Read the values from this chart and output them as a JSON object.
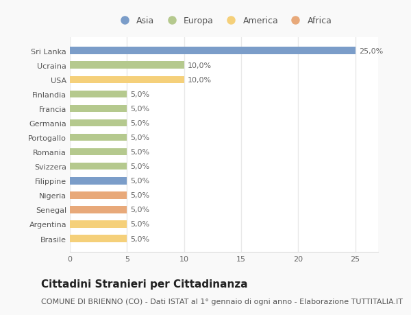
{
  "countries": [
    "Sri Lanka",
    "Ucraina",
    "USA",
    "Finlandia",
    "Francia",
    "Germania",
    "Portogallo",
    "Romania",
    "Svizzera",
    "Filippine",
    "Nigeria",
    "Senegal",
    "Argentina",
    "Brasile"
  ],
  "values": [
    25.0,
    10.0,
    10.0,
    5.0,
    5.0,
    5.0,
    5.0,
    5.0,
    5.0,
    5.0,
    5.0,
    5.0,
    5.0,
    5.0
  ],
  "continents": [
    "Asia",
    "Europa",
    "America",
    "Europa",
    "Europa",
    "Europa",
    "Europa",
    "Europa",
    "Europa",
    "Asia",
    "Africa",
    "Africa",
    "America",
    "America"
  ],
  "colors": {
    "Asia": "#7b9dc9",
    "Europa": "#b5c98e",
    "America": "#f5d07a",
    "Africa": "#e8a97a"
  },
  "xlim": [
    0,
    27
  ],
  "xticks": [
    0,
    5,
    10,
    15,
    20,
    25
  ],
  "title": "Cittadini Stranieri per Cittadinanza",
  "subtitle": "COMUNE DI BRIENNO (CO) - Dati ISTAT al 1° gennaio di ogni anno - Elaborazione TUTTITALIA.IT",
  "plot_bg_color": "#ffffff",
  "fig_bg_color": "#f9f9f9",
  "grid_color": "#e8e8e8",
  "bar_height": 0.5,
  "title_fontsize": 11,
  "subtitle_fontsize": 8,
  "label_fontsize": 8,
  "tick_fontsize": 8,
  "legend_fontsize": 9
}
